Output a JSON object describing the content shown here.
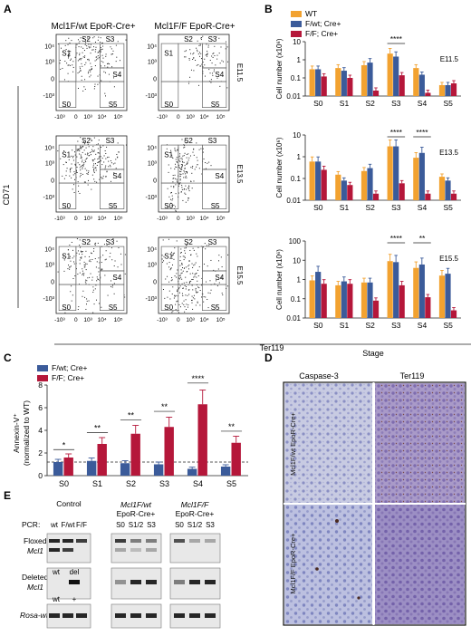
{
  "panel_letters": {
    "a": "A",
    "b": "B",
    "c": "C",
    "d": "D",
    "e": "E"
  },
  "panel_a": {
    "col_headers": [
      "Mcl1F/wt EpoR-Cre+",
      "Mcl1F/F EpoR-Cre+"
    ],
    "row_labels": [
      "E11.5",
      "E13.5",
      "E15.5"
    ],
    "gates": [
      "S0",
      "S1",
      "S2",
      "S3",
      "S4",
      "S5"
    ],
    "y_axis_label": "CD71",
    "x_axis_label": "Ter119",
    "y_ticks": [
      "10⁴",
      "10³",
      "0",
      "-10³"
    ],
    "x_ticks": [
      "-10³",
      "0",
      "10³",
      "10⁴",
      "10⁵"
    ]
  },
  "panel_b": {
    "legend": [
      {
        "label": "WT",
        "color": "#F2A230"
      },
      {
        "label": "F/wt; Cre+",
        "color": "#3B5B9A"
      },
      {
        "label": "F/F; Cre+",
        "color": "#B5173A"
      }
    ],
    "y_label": "Cell number (x10⁶)",
    "x_label": "Stage",
    "stages": [
      "S0",
      "S1",
      "S2",
      "S3",
      "S4",
      "S5"
    ]
  },
  "panel_c": {
    "legend": [
      {
        "label": "F/wt; Cre+",
        "color": "#3B5B9A"
      },
      {
        "label": "F/F; Cre+",
        "color": "#B5173A"
      }
    ],
    "y_label_1": "Annexin-V⁺",
    "y_label_2": "(normalized to WT)"
  },
  "panel_d": {
    "col_headers": [
      "Caspase-3",
      "Ter119"
    ],
    "row_labels": [
      "Mcl1F/wt EpoR-Cre+",
      "Mcl1F/F EpoR-Cre+"
    ]
  },
  "panel_e": {
    "header_control": "Control",
    "header_fwt_1": "Mcl1F/wt",
    "header_fwt_2": "EpoR-Cre+",
    "header_ff_1": "Mcl1F/F",
    "header_ff_2": "EpoR-Cre+",
    "pcr_label": "PCR:",
    "lane_labels_control": [
      "wt",
      "F/wt",
      "F/F"
    ],
    "lane_labels_fwt": [
      "S0",
      "S1/2",
      "S3"
    ],
    "lane_labels_ff": [
      "S0",
      "S1/2",
      "S3"
    ],
    "rows": [
      {
        "label_1": "Floxed",
        "label_2": "Mcl1"
      },
      {
        "label_1": "Deleted",
        "label_2": "Mcl1"
      },
      {
        "label_1": "Rosa-wt",
        "label_2": ""
      }
    ],
    "marker_labels_deleted": [
      "wt",
      "del"
    ],
    "marker_labels_rosa": [
      "wt",
      "+"
    ]
  },
  "chart_data": [
    {
      "type": "bar",
      "title": "E11.5",
      "ylabel": "Cell number (x10⁶)",
      "yscale": "log",
      "ylim": [
        0.01,
        10
      ],
      "y_ticks": [
        "10",
        "1",
        "0.1",
        "0.01"
      ],
      "categories": [
        "S0",
        "S1",
        "S2",
        "S3",
        "S4",
        "S5"
      ],
      "series": [
        {
          "name": "WT",
          "values": [
            0.3,
            0.35,
            0.5,
            2.2,
            0.35,
            0.04
          ]
        },
        {
          "name": "F/wt; Cre+",
          "values": [
            0.3,
            0.25,
            0.7,
            1.5,
            0.15,
            0.04
          ]
        },
        {
          "name": "F/F; Cre+",
          "values": [
            0.12,
            0.1,
            0.02,
            0.14,
            0.015,
            0.05
          ]
        }
      ],
      "significance": [
        {
          "stage": "S3",
          "label": "****"
        }
      ]
    },
    {
      "type": "bar",
      "title": "E13.5",
      "ylabel": "Cell number (x10⁶)",
      "yscale": "log",
      "ylim": [
        0.01,
        10
      ],
      "y_ticks": [
        "10",
        "1",
        "0.1",
        "0.01"
      ],
      "categories": [
        "S0",
        "S1",
        "S2",
        "S3",
        "S4",
        "S5"
      ],
      "series": [
        {
          "name": "WT",
          "values": [
            0.6,
            0.15,
            0.22,
            3.0,
            0.9,
            0.12
          ]
        },
        {
          "name": "F/wt; Cre+",
          "values": [
            0.6,
            0.08,
            0.3,
            3.0,
            1.5,
            0.08
          ]
        },
        {
          "name": "F/F; Cre+",
          "values": [
            0.25,
            0.05,
            0.02,
            0.06,
            0.02,
            0.02
          ]
        }
      ],
      "significance": [
        {
          "stage": "S3",
          "label": "****"
        },
        {
          "stage": "S4",
          "label": "****"
        }
      ]
    },
    {
      "type": "bar",
      "title": "E15.5",
      "ylabel": "Cell number (x10⁶)",
      "yscale": "log",
      "ylim": [
        0.01,
        100
      ],
      "y_ticks": [
        "100",
        "10",
        "1",
        "0.1",
        "0.01"
      ],
      "categories": [
        "S0",
        "S1",
        "S2",
        "S3",
        "S4",
        "S5"
      ],
      "series": [
        {
          "name": "WT",
          "values": [
            0.9,
            0.5,
            0.7,
            9.0,
            4.0,
            1.6
          ]
        },
        {
          "name": "F/wt; Cre+",
          "values": [
            2.5,
            0.8,
            0.7,
            8.0,
            6.0,
            2.0
          ]
        },
        {
          "name": "F/F; Cre+",
          "values": [
            0.6,
            0.6,
            0.08,
            0.5,
            0.12,
            0.025
          ]
        }
      ],
      "significance": [
        {
          "stage": "S3",
          "label": "****"
        },
        {
          "stage": "S4",
          "label": "**"
        }
      ]
    },
    {
      "type": "bar",
      "ylabel": "Annexin-V⁺ (normalized to WT)",
      "ylim": [
        0,
        8
      ],
      "y_ticks": [
        "0",
        "2",
        "4",
        "6",
        "8"
      ],
      "reference_line": 1.2,
      "categories": [
        "S0",
        "S1",
        "S2",
        "S3",
        "S4",
        "S5"
      ],
      "series": [
        {
          "name": "F/wt; Cre+",
          "values": [
            1.2,
            1.3,
            1.1,
            1.0,
            0.6,
            0.8
          ]
        },
        {
          "name": "F/F; Cre+",
          "values": [
            1.6,
            2.8,
            3.7,
            4.3,
            6.3,
            2.9
          ]
        }
      ],
      "significance": [
        {
          "stage": "S0",
          "label": "*"
        },
        {
          "stage": "S1",
          "label": "**"
        },
        {
          "stage": "S2",
          "label": "**"
        },
        {
          "stage": "S3",
          "label": "**"
        },
        {
          "stage": "S4",
          "label": "****"
        },
        {
          "stage": "S5",
          "label": "**"
        }
      ]
    }
  ]
}
